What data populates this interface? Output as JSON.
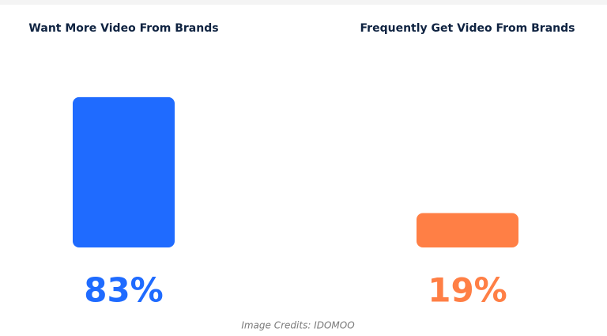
{
  "chart_data": {
    "type": "bar",
    "categories": [
      "Want More Video From Brands",
      "Frequently Get Video From Brands"
    ],
    "values": [
      83,
      19
    ],
    "value_labels": [
      "83%",
      "19%"
    ],
    "colors": [
      "#1f6bff",
      "#ff7f45"
    ],
    "credit": "Image Credits: IDOMOO"
  }
}
